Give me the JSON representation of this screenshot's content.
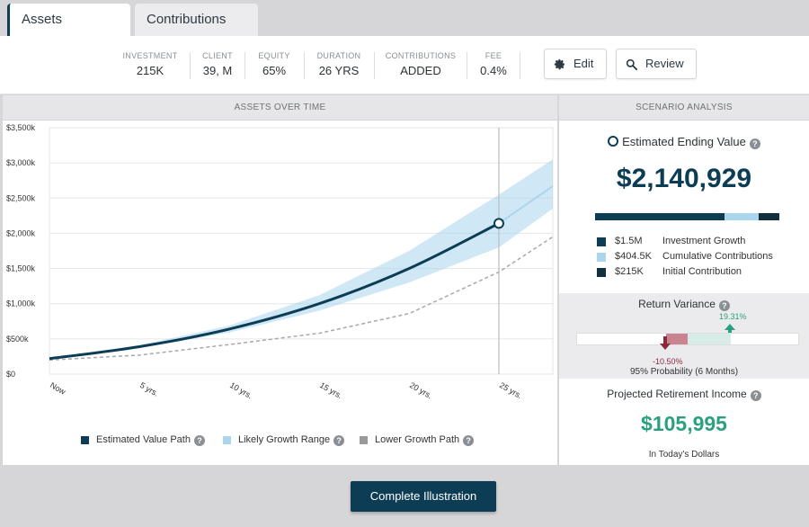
{
  "tabs": [
    {
      "label": "Assets",
      "active": true
    },
    {
      "label": "Contributions",
      "active": false
    }
  ],
  "stats": [
    {
      "key": "INVESTMENT",
      "value": "215K"
    },
    {
      "key": "CLIENT",
      "value": "39, M"
    },
    {
      "key": "EQUITY",
      "value": "65%"
    },
    {
      "key": "DURATION",
      "value": "26 YRS"
    },
    {
      "key": "CONTRIBUTIONS",
      "value": "ADDED"
    },
    {
      "key": "FEE",
      "value": "0.4%"
    }
  ],
  "buttons": {
    "edit": "Edit",
    "review": "Review",
    "complete": "Complete Illustration"
  },
  "icons": {
    "edit": "gear-icon",
    "review": "search-icon",
    "help": "question-icon"
  },
  "left_panel": {
    "title": "ASSETS OVER TIME"
  },
  "legend": [
    {
      "label": "Estimated Value Path",
      "color": "#0d3d55"
    },
    {
      "label": "Likely Growth Range",
      "color": "#a9d6ec"
    },
    {
      "label": "Lower Growth Path",
      "color": "#9a9a9a"
    }
  ],
  "chart_data": {
    "type": "line",
    "x_ticks": [
      "Now",
      "5 yrs.",
      "10 yrs.",
      "15 yrs.",
      "20 yrs.",
      "25 yrs."
    ],
    "y_ticks": [
      "$0",
      "$500k",
      "$1,000k",
      "$1,500k",
      "$2,000k",
      "$2,500k",
      "$3,000k",
      "$3,500k"
    ],
    "ylim": [
      0,
      3500000
    ],
    "xlim": [
      0,
      28
    ],
    "series": [
      {
        "name": "Estimated Value Path",
        "x": [
          0,
          5,
          10,
          15,
          20,
          25
        ],
        "y": [
          220000,
          390000,
          640000,
          1000000,
          1500000,
          2140929
        ]
      },
      {
        "name": "Estimated Value Path",
        "x": [
          25,
          28
        ],
        "y": [
          2140929,
          2670000
        ]
      },
      {
        "name": "Likely Growth Range",
        "x": [
          0,
          5,
          10,
          15,
          20,
          25,
          28
        ],
        "low": [
          210000,
          370000,
          590000,
          900000,
          1300000,
          1800000,
          2350000
        ],
        "high": [
          230000,
          410000,
          690000,
          1120000,
          1750000,
          2550000,
          3050000
        ]
      },
      {
        "name": "Lower Growth Path",
        "x": [
          0,
          5,
          10,
          15,
          20,
          25,
          28
        ],
        "y": [
          200000,
          270000,
          420000,
          580000,
          860000,
          1450000,
          1950000
        ]
      }
    ],
    "marker": {
      "x": 25,
      "y": 2140929
    },
    "grid": true
  },
  "right_panel": {
    "title": "SCENARIO ANALYSIS",
    "est_title": "Estimated Ending Value",
    "est_value": "$2,140,929",
    "stack": [
      {
        "fraction": 0.7,
        "color": "#0d3d55"
      },
      {
        "fraction": 0.19,
        "color": "#a9d6ec"
      },
      {
        "fraction": 0.11,
        "color": "#10303f"
      }
    ],
    "breakdown": [
      {
        "amount": "$1.5M",
        "label": "Investment Growth",
        "color": "#0d3d55"
      },
      {
        "amount": "$404.5K",
        "label": "Cumulative Contributions",
        "color": "#a9d6ec"
      },
      {
        "amount": "$215K",
        "label": "Initial Contribution",
        "color": "#10303f"
      }
    ],
    "variance": {
      "title": "Return Variance",
      "up": "19.31%",
      "down": "-10.50%",
      "probability": "95% Probability (6 Months)"
    },
    "projected": {
      "title": "Projected Retirement Income",
      "value": "$105,995",
      "sub": "In Today's Dollars"
    }
  }
}
